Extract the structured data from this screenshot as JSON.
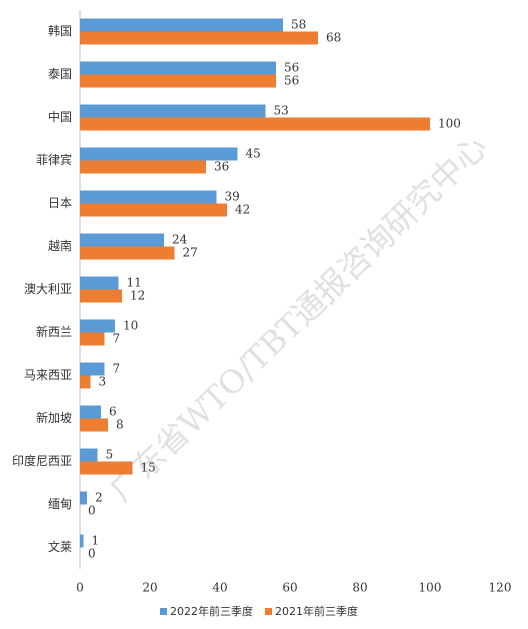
{
  "chart_data": {
    "type": "bar",
    "orientation": "horizontal",
    "categories": [
      "韩国",
      "泰国",
      "中国",
      "菲律宾",
      "日本",
      "越南",
      "澳大利亚",
      "新西兰",
      "马来西亚",
      "新加坡",
      "印度尼西亚",
      "缅甸",
      "文莱"
    ],
    "series": [
      {
        "name": "2022年前三季度",
        "color": "#5b9bd5",
        "values": [
          58,
          56,
          53,
          45,
          39,
          24,
          11,
          10,
          7,
          6,
          5,
          2,
          1
        ]
      },
      {
        "name": "2021年前三季度",
        "color": "#ed7d31",
        "values": [
          68,
          56,
          100,
          36,
          42,
          27,
          12,
          7,
          3,
          8,
          15,
          0,
          0
        ]
      }
    ],
    "xlim": [
      0,
      120
    ],
    "xticks": [
      0,
      20,
      40,
      60,
      80,
      100,
      120
    ],
    "grid": false,
    "legend": "bottom",
    "watermark": "广东省WTO/TBT通报咨询研究中心"
  }
}
